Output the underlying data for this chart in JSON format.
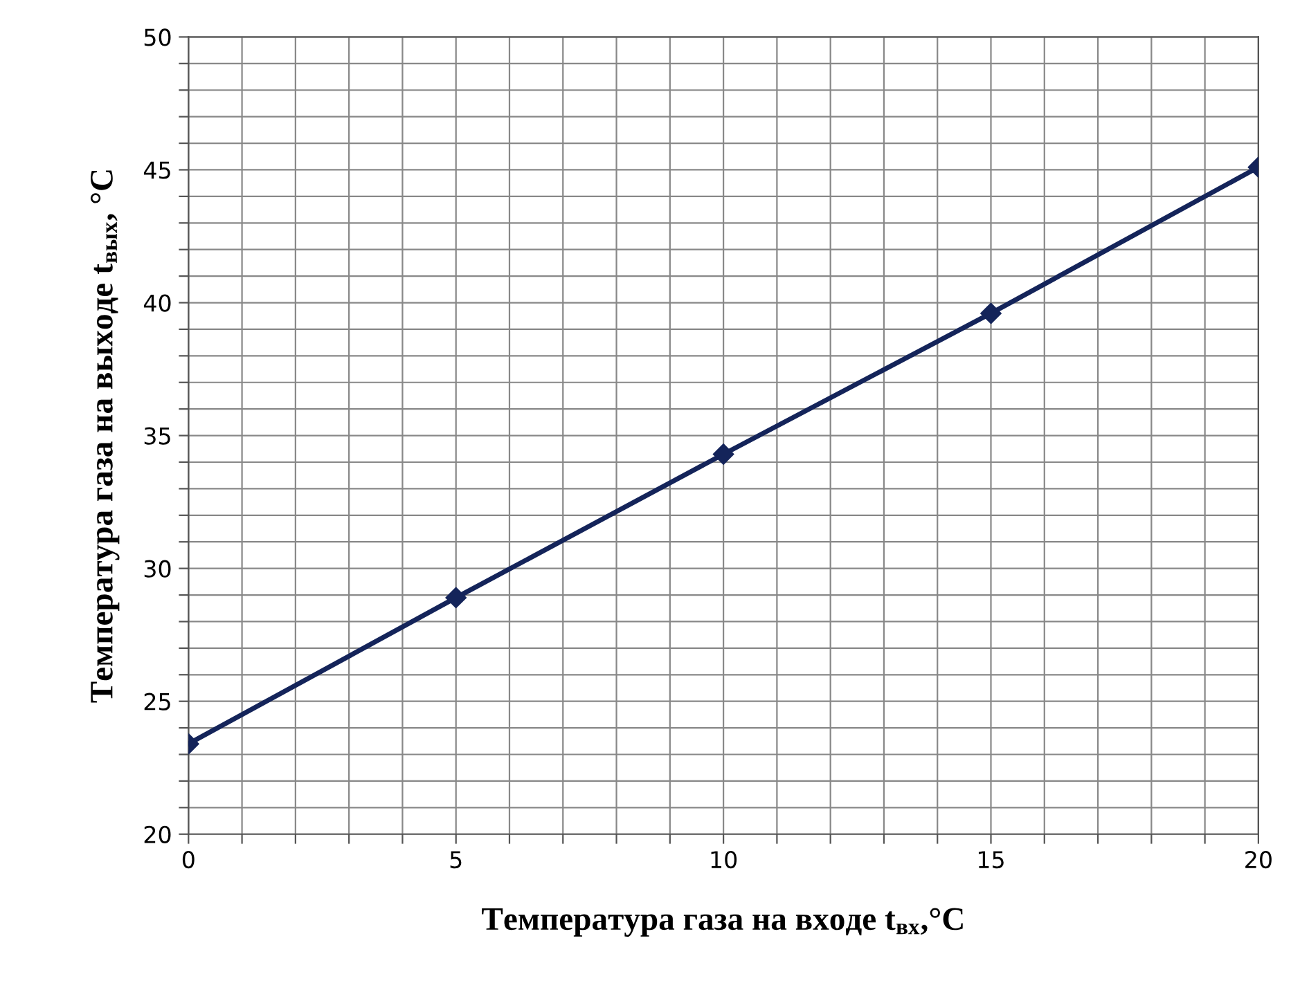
{
  "chart_data": {
    "type": "line",
    "xlabel": "Температура газа на входе t$_{вх}$,°C",
    "ylabel": "Температура газа на выходе t$_{вых}$, °C",
    "x": [
      0,
      5,
      10,
      15,
      20
    ],
    "series": [
      {
        "color": "#14245a",
        "values": [
          23.4,
          28.9,
          34.3,
          39.6,
          45.1
        ]
      }
    ],
    "xlim": [
      0,
      20
    ],
    "xticks": [
      0,
      {
        "value": 1,
        "label": null
      },
      {
        "value": 2,
        "label": null
      },
      {
        "value": 3,
        "label": null
      },
      {
        "value": 4,
        "label": null
      },
      5,
      {
        "value": 6,
        "label": null
      },
      {
        "value": 7,
        "label": null
      },
      {
        "value": 8,
        "label": null
      },
      {
        "value": 9,
        "label": null
      },
      10,
      {
        "value": 11,
        "label": null
      },
      {
        "value": 12,
        "label": null
      },
      {
        "value": 13,
        "label": null
      },
      {
        "value": 14,
        "label": null
      },
      15,
      {
        "value": 16,
        "label": null
      },
      {
        "value": 17,
        "label": null
      },
      {
        "value": 18,
        "label": null
      },
      {
        "value": 19,
        "label": null
      },
      20
    ],
    "ylim": [
      20,
      50
    ],
    "yticks": [
      20,
      {
        "value": 21,
        "label": null
      },
      {
        "value": 22,
        "label": null
      },
      {
        "value": 23,
        "label": null
      },
      {
        "value": 24,
        "label": null
      },
      25,
      {
        "value": 26,
        "label": null
      },
      {
        "value": 27,
        "label": null
      },
      {
        "value": 28,
        "label": null
      },
      {
        "value": 29,
        "label": null
      },
      30,
      {
        "value": 31,
        "label": null
      },
      {
        "value": 32,
        "label": null
      },
      {
        "value": 33,
        "label": null
      },
      {
        "value": 34,
        "label": null
      },
      35,
      {
        "value": 36,
        "label": null
      },
      {
        "value": 37,
        "label": null
      },
      {
        "value": 38,
        "label": null
      },
      {
        "value": 39,
        "label": null
      },
      40,
      {
        "value": 41,
        "label": null
      },
      {
        "value": 42,
        "label": null
      },
      {
        "value": 43,
        "label": null
      },
      {
        "value": 44,
        "label": null
      },
      45,
      {
        "value": 46,
        "label": null
      },
      {
        "value": 47,
        "label": null
      },
      {
        "value": 48,
        "label": null
      },
      {
        "value": 49,
        "label": null
      },
      50
    ],
    "grid": true,
    "marker": "diamond",
    "line_style": "solid"
  }
}
